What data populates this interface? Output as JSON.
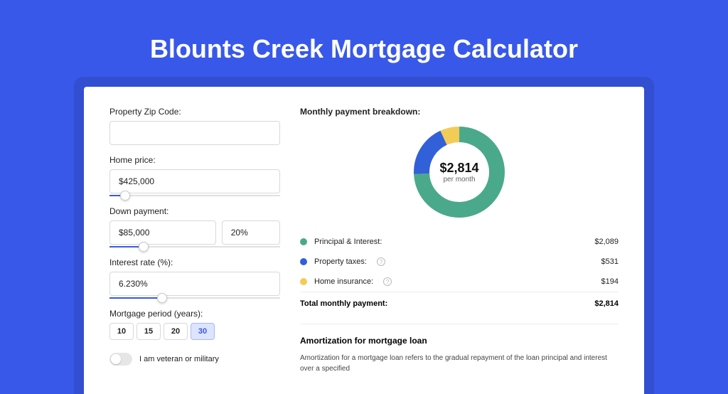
{
  "page": {
    "title": "Blounts Creek Mortgage Calculator",
    "background_color": "#3858e9"
  },
  "form": {
    "zip": {
      "label": "Property Zip Code:",
      "value": ""
    },
    "home_price": {
      "label": "Home price:",
      "value": "$425,000",
      "slider_pct": 9
    },
    "down_payment": {
      "label": "Down payment:",
      "value": "$85,000",
      "pct": "20%",
      "slider_pct": 20
    },
    "interest": {
      "label": "Interest rate (%):",
      "value": "6.230%",
      "slider_pct": 31
    },
    "period": {
      "label": "Mortgage period (years):",
      "options": [
        "10",
        "15",
        "20",
        "30"
      ],
      "selected": "30"
    },
    "veteran": {
      "label": "I am veteran or military",
      "on": false
    }
  },
  "breakdown": {
    "title": "Monthly payment breakdown:",
    "center_amount": "$2,814",
    "center_sub": "per month",
    "donut": {
      "diameter": 128,
      "stroke": 22,
      "slices": [
        {
          "label": "Principal & Interest:",
          "value": "$2,089",
          "color": "#4ba98b",
          "pct": 74.2
        },
        {
          "label": "Property taxes:",
          "value": "$531",
          "color": "#3260d8",
          "pct": 18.9,
          "info": true
        },
        {
          "label": "Home insurance:",
          "value": "$194",
          "color": "#f3cb57",
          "pct": 6.9,
          "info": true
        }
      ]
    },
    "total_label": "Total monthly payment:",
    "total_value": "$2,814"
  },
  "amortization": {
    "title": "Amortization for mortgage loan",
    "text": "Amortization for a mortgage loan refers to the gradual repayment of the loan principal and interest over a specified"
  }
}
